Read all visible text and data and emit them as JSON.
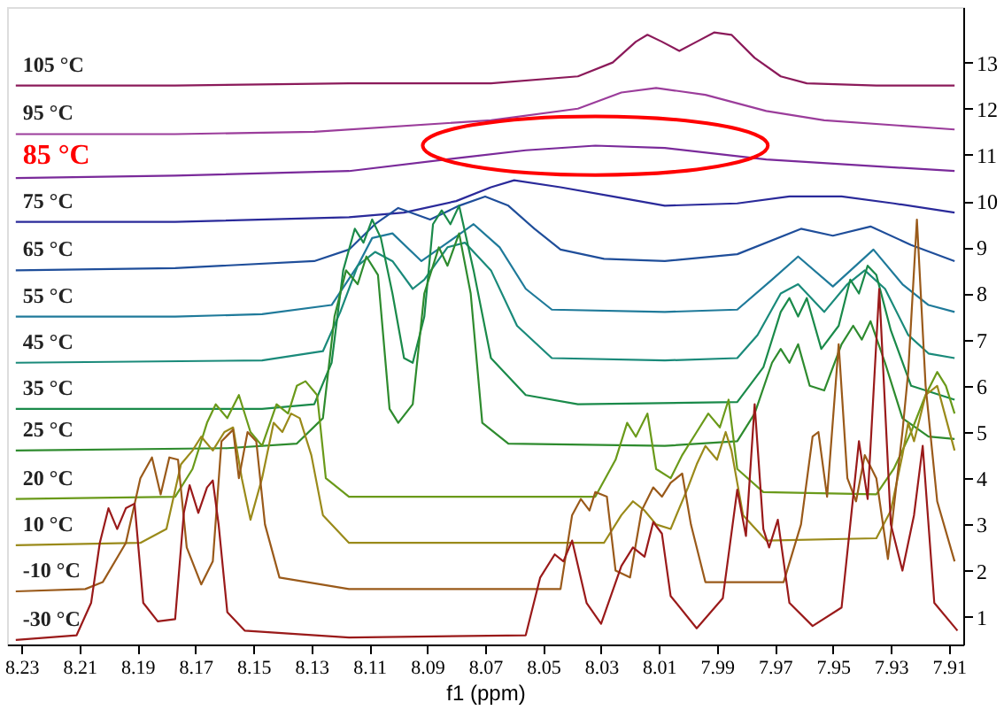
{
  "chart_data": {
    "type": "line",
    "xlabel": "f1 (ppm)",
    "xlim": [
      8.235,
      7.905
    ],
    "xticks": [
      8.23,
      8.21,
      8.19,
      8.17,
      8.15,
      8.13,
      8.11,
      8.09,
      8.07,
      8.05,
      8.03,
      8.01,
      7.99,
      7.97,
      7.95,
      7.93,
      7.91
    ],
    "ylim": [
      0.4,
      14.2
    ],
    "yticks": [
      1,
      2,
      3,
      4,
      5,
      6,
      7,
      8,
      9,
      10,
      11,
      12,
      13
    ],
    "grid": false,
    "legend": false,
    "marker": "none",
    "line_style": "solid",
    "series": [
      {
        "name": "105 °C",
        "color": "#8b1a5a",
        "x": [
          8.232,
          8.177,
          8.117,
          8.068,
          8.038,
          8.026,
          8.018,
          8.014,
          8.009,
          8.003,
          7.997,
          7.991,
          7.985,
          7.977,
          7.968,
          7.959,
          7.935,
          7.908
        ],
        "values": [
          12.5,
          12.5,
          12.55,
          12.55,
          12.7,
          13.0,
          13.45,
          13.6,
          13.45,
          13.25,
          13.45,
          13.65,
          13.6,
          13.1,
          12.7,
          12.55,
          12.5,
          12.5
        ]
      },
      {
        "name": "95 °C",
        "color": "#9b3d9b",
        "x": [
          8.232,
          8.177,
          8.129,
          8.068,
          8.038,
          8.023,
          8.011,
          7.994,
          7.973,
          7.953,
          7.908
        ],
        "values": [
          11.45,
          11.45,
          11.5,
          11.75,
          12.0,
          12.35,
          12.45,
          12.3,
          11.95,
          11.75,
          11.55
        ]
      },
      {
        "name": "85 °C",
        "color": "#7a2a9a",
        "x": [
          8.232,
          8.177,
          8.117,
          8.077,
          8.056,
          8.032,
          8.008,
          7.973,
          7.908
        ],
        "values": [
          10.5,
          10.55,
          10.65,
          10.95,
          11.1,
          11.2,
          11.15,
          10.9,
          10.65
        ]
      },
      {
        "name": "75 °C",
        "color": "#2a2a9a",
        "x": [
          8.232,
          8.177,
          8.117,
          8.098,
          8.08,
          8.068,
          8.06,
          8.044,
          8.026,
          8.008,
          7.983,
          7.965,
          7.947,
          7.929,
          7.908
        ],
        "values": [
          9.55,
          9.55,
          9.65,
          9.75,
          10.0,
          10.3,
          10.45,
          10.3,
          10.1,
          9.9,
          9.95,
          10.1,
          10.1,
          9.95,
          9.75
        ]
      },
      {
        "name": "65 °C",
        "color": "#1f4e9a",
        "x": [
          8.232,
          8.177,
          8.129,
          8.117,
          8.108,
          8.1,
          8.089,
          8.079,
          8.07,
          8.062,
          8.053,
          8.044,
          8.029,
          8.008,
          7.983,
          7.961,
          7.95,
          7.937,
          7.923,
          7.908
        ],
        "values": [
          8.5,
          8.55,
          8.7,
          8.95,
          9.5,
          9.85,
          9.6,
          9.9,
          10.1,
          9.9,
          9.4,
          8.95,
          8.75,
          8.7,
          8.85,
          9.4,
          9.25,
          9.45,
          9.05,
          8.7
        ]
      },
      {
        "name": "55 °C",
        "color": "#1f7a9a",
        "x": [
          8.232,
          8.177,
          8.147,
          8.123,
          8.114,
          8.109,
          8.102,
          8.092,
          8.083,
          8.074,
          8.065,
          8.056,
          8.047,
          8.008,
          7.983,
          7.971,
          7.962,
          7.95,
          7.936,
          7.926,
          7.917,
          7.908
        ],
        "values": [
          7.5,
          7.5,
          7.55,
          7.75,
          8.6,
          9.2,
          9.3,
          8.7,
          9.1,
          9.5,
          9.0,
          8.1,
          7.65,
          7.6,
          7.65,
          8.3,
          8.8,
          8.15,
          8.95,
          8.2,
          7.75,
          7.6
        ]
      },
      {
        "name": "45 °C",
        "color": "#1a8a7a",
        "x": [
          8.232,
          8.147,
          8.126,
          8.12,
          8.114,
          8.108,
          8.102,
          8.095,
          8.091,
          8.083,
          8.077,
          8.068,
          8.059,
          8.047,
          8.008,
          7.983,
          7.976,
          7.968,
          7.962,
          7.953,
          7.945,
          7.939,
          7.932,
          7.924,
          7.917,
          7.908
        ],
        "values": [
          6.5,
          6.55,
          6.75,
          7.6,
          8.6,
          8.9,
          8.7,
          8.1,
          8.3,
          9.0,
          9.1,
          8.5,
          7.3,
          6.6,
          6.55,
          6.6,
          7.1,
          8.0,
          8.2,
          7.6,
          8.2,
          8.5,
          8.1,
          7.1,
          6.7,
          6.6
        ]
      },
      {
        "name": "35 °C",
        "color": "#1a8a4a",
        "x": [
          8.232,
          8.147,
          8.129,
          8.123,
          8.119,
          8.115,
          8.112,
          8.109,
          8.106,
          8.102,
          8.098,
          8.095,
          8.091,
          8.088,
          8.085,
          8.082,
          8.079,
          8.074,
          8.068,
          8.056,
          8.038,
          7.983,
          7.974,
          7.968,
          7.965,
          7.962,
          7.959,
          7.954,
          7.948,
          7.944,
          7.941,
          7.938,
          7.935,
          7.93,
          7.923,
          7.908
        ],
        "values": [
          5.5,
          5.5,
          5.6,
          6.5,
          8.5,
          9.4,
          9.1,
          9.6,
          9.2,
          8.0,
          6.6,
          6.5,
          7.5,
          9.5,
          9.8,
          9.5,
          9.9,
          8.5,
          6.6,
          5.8,
          5.6,
          5.65,
          6.4,
          7.6,
          7.9,
          7.5,
          7.9,
          6.8,
          7.3,
          8.3,
          8.0,
          8.6,
          8.4,
          7.2,
          6.0,
          5.7
        ]
      },
      {
        "name": "25 °C",
        "color": "#2e8b2e",
        "x": [
          8.232,
          8.159,
          8.135,
          8.126,
          8.122,
          8.118,
          8.114,
          8.111,
          8.107,
          8.103,
          8.1,
          8.095,
          8.091,
          8.086,
          8.083,
          8.079,
          8.075,
          8.071,
          8.062,
          8.008,
          7.983,
          7.977,
          7.971,
          7.968,
          7.965,
          7.962,
          7.958,
          7.953,
          7.947,
          7.943,
          7.94,
          7.937,
          7.932,
          7.926,
          7.917,
          7.908
        ],
        "values": [
          4.6,
          4.65,
          4.75,
          5.3,
          7.5,
          8.5,
          8.2,
          8.8,
          8.4,
          5.5,
          5.2,
          5.6,
          8.0,
          9.0,
          8.6,
          9.3,
          8.0,
          5.2,
          4.75,
          4.7,
          4.8,
          5.4,
          6.5,
          6.8,
          6.5,
          6.9,
          6.0,
          5.9,
          6.9,
          7.3,
          7.0,
          7.4,
          6.5,
          5.3,
          4.9,
          4.85
        ]
      },
      {
        "name": "20 °C",
        "color": "#6a9a1a",
        "x": [
          8.232,
          8.177,
          8.171,
          8.166,
          8.163,
          8.159,
          8.155,
          8.151,
          8.147,
          8.142,
          8.138,
          8.135,
          8.132,
          8.128,
          8.125,
          8.117,
          8.032,
          8.025,
          8.021,
          8.018,
          8.014,
          8.011,
          8.006,
          8.002,
          7.997,
          7.993,
          7.989,
          7.986,
          7.983,
          7.974,
          7.935,
          7.929,
          7.923,
          7.918,
          7.914,
          7.911,
          7.908
        ],
        "values": [
          3.55,
          3.6,
          4.2,
          5.2,
          5.6,
          5.3,
          5.8,
          5.0,
          4.7,
          5.6,
          5.4,
          6.0,
          6.1,
          5.8,
          4.0,
          3.6,
          3.6,
          4.4,
          5.2,
          4.9,
          5.4,
          4.2,
          4.0,
          4.5,
          5.0,
          5.4,
          5.1,
          5.7,
          4.2,
          3.7,
          3.65,
          4.2,
          5.0,
          5.8,
          6.3,
          6.0,
          5.4
        ]
      },
      {
        "name": "10 °C",
        "color": "#9a8a1a",
        "x": [
          8.232,
          8.189,
          8.18,
          8.175,
          8.171,
          8.168,
          8.164,
          8.16,
          8.157,
          8.154,
          8.151,
          8.147,
          8.143,
          8.14,
          8.137,
          8.134,
          8.13,
          8.126,
          8.117,
          8.029,
          8.023,
          8.019,
          8.015,
          8.011,
          8.006,
          8.0,
          7.997,
          7.994,
          7.99,
          7.987,
          7.985,
          7.981,
          7.973,
          7.935,
          7.93,
          7.926,
          7.924,
          7.922,
          7.918,
          7.914,
          7.911,
          7.908
        ],
        "values": [
          2.55,
          2.6,
          2.9,
          4.3,
          4.6,
          4.9,
          4.6,
          5.0,
          5.1,
          4.0,
          3.1,
          4.0,
          5.2,
          5.0,
          5.4,
          5.3,
          4.5,
          3.2,
          2.6,
          2.6,
          3.2,
          3.5,
          3.3,
          3.0,
          2.9,
          3.8,
          4.3,
          4.7,
          4.4,
          5.0,
          4.6,
          3.2,
          2.65,
          2.7,
          3.3,
          4.5,
          5.2,
          4.8,
          5.8,
          6.0,
          5.3,
          4.6
        ]
      },
      {
        "name": "-10 °C",
        "color": "#9a5a1a",
        "x": [
          8.232,
          8.208,
          8.202,
          8.194,
          8.189,
          8.185,
          8.182,
          8.179,
          8.176,
          8.173,
          8.168,
          8.164,
          8.161,
          8.157,
          8.155,
          8.152,
          8.149,
          8.146,
          8.141,
          8.117,
          8.044,
          8.04,
          8.037,
          8.034,
          8.032,
          8.028,
          8.025,
          8.02,
          8.016,
          8.012,
          8.009,
          8.006,
          8.002,
          7.999,
          7.994,
          7.967,
          7.961,
          7.957,
          7.955,
          7.952,
          7.948,
          7.945,
          7.942,
          7.939,
          7.935,
          7.931,
          7.926,
          7.924,
          7.921,
          7.918,
          7.914,
          7.908
        ],
        "values": [
          1.55,
          1.6,
          1.75,
          2.6,
          4.0,
          4.45,
          3.65,
          4.45,
          4.4,
          2.5,
          1.7,
          2.2,
          4.8,
          5.05,
          4.0,
          5.0,
          4.8,
          3.0,
          1.85,
          1.6,
          1.6,
          3.2,
          3.55,
          3.3,
          3.7,
          3.6,
          2.0,
          1.85,
          3.3,
          3.8,
          3.6,
          3.9,
          4.1,
          3.0,
          1.75,
          1.75,
          3.0,
          4.9,
          5.0,
          3.6,
          6.9,
          4.0,
          3.5,
          4.5,
          4.0,
          2.25,
          5.0,
          6.3,
          9.6,
          6.0,
          3.5,
          2.2
        ]
      },
      {
        "name": "-30 °C",
        "color": "#9a1a1a",
        "x": [
          8.232,
          8.211,
          8.206,
          8.203,
          8.2,
          8.197,
          8.194,
          8.191,
          8.188,
          8.183,
          8.177,
          8.174,
          8.172,
          8.169,
          8.166,
          8.164,
          8.162,
          8.159,
          8.153,
          8.117,
          8.056,
          8.051,
          8.046,
          8.043,
          8.04,
          8.035,
          8.03,
          8.023,
          8.019,
          8.015,
          8.012,
          8.009,
          8.006,
          7.997,
          7.988,
          7.983,
          7.98,
          7.977,
          7.974,
          7.972,
          7.969,
          7.965,
          7.957,
          7.947,
          7.944,
          7.941,
          7.938,
          7.934,
          7.93,
          7.926,
          7.922,
          7.919,
          7.915,
          7.907
        ],
        "values": [
          0.5,
          0.6,
          1.3,
          2.6,
          3.35,
          2.9,
          3.35,
          3.45,
          1.3,
          0.9,
          0.95,
          3.25,
          3.85,
          3.25,
          3.8,
          3.95,
          3.0,
          1.1,
          0.7,
          0.55,
          0.6,
          1.85,
          2.35,
          2.2,
          2.65,
          1.3,
          0.85,
          2.1,
          2.5,
          2.3,
          3.05,
          2.8,
          1.45,
          0.75,
          1.4,
          3.75,
          2.75,
          5.6,
          2.9,
          2.5,
          3.1,
          1.3,
          0.8,
          1.2,
          3.0,
          4.8,
          3.55,
          8.1,
          3.0,
          2.0,
          3.2,
          4.7,
          1.3,
          0.7
        ]
      }
    ]
  }
}
